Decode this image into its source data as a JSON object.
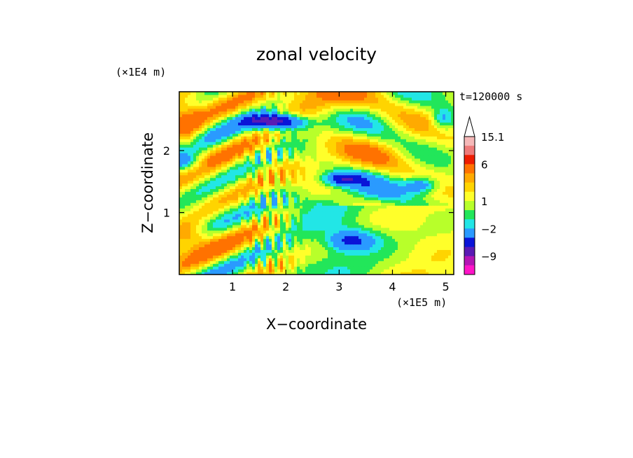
{
  "chart_data": {
    "type": "heatmap",
    "title": "zonal velocity",
    "xlabel": "X−coordinate",
    "ylabel": "Z−coordinate",
    "x_unit": "(×1E5 m)",
    "y_unit": "(×1E4 m)",
    "time_label": "t=120000 s",
    "xlim": [
      0,
      5.15
    ],
    "ylim": [
      0,
      2.95
    ],
    "x_ticks": [
      {
        "value": 1,
        "label": "1"
      },
      {
        "value": 2,
        "label": "2"
      },
      {
        "value": 3,
        "label": "3"
      },
      {
        "value": 4,
        "label": "4"
      },
      {
        "value": 5,
        "label": "5"
      }
    ],
    "y_ticks": [
      {
        "value": 1,
        "label": "1"
      },
      {
        "value": 2,
        "label": "2"
      }
    ],
    "colorbar": {
      "labels": [
        {
          "value": 15.1,
          "label": "15.1"
        },
        {
          "value": 6,
          "label": "6"
        },
        {
          "value": 1,
          "label": "1"
        },
        {
          "value": -2,
          "label": "−2"
        },
        {
          "value": -9,
          "label": "−9"
        }
      ],
      "levels": [
        {
          "min": 12,
          "max": 15.1,
          "color": "#f5b8b8"
        },
        {
          "min": 9,
          "max": 12,
          "color": "#ee7a7a"
        },
        {
          "min": 6,
          "max": 9,
          "color": "#ee1c00"
        },
        {
          "min": 4,
          "max": 6,
          "color": "#ff7200"
        },
        {
          "min": 3,
          "max": 4,
          "color": "#ffaa00"
        },
        {
          "min": 2,
          "max": 3,
          "color": "#ffd400"
        },
        {
          "min": 1,
          "max": 2,
          "color": "#ffff2a"
        },
        {
          "min": 0,
          "max": 1,
          "color": "#b8ff2a"
        },
        {
          "min": -1,
          "max": 0,
          "color": "#22e65a"
        },
        {
          "min": -2,
          "max": -1,
          "color": "#22e6e6"
        },
        {
          "min": -4,
          "max": -2,
          "color": "#2a9aff"
        },
        {
          "min": -6,
          "max": -4,
          "color": "#0a14d8"
        },
        {
          "min": -9,
          "max": -6,
          "color": "#5a1ab4"
        },
        {
          "min": -12,
          "max": -9,
          "color": "#b414b4"
        },
        {
          "min": -15,
          "max": -12,
          "color": "#ff14c8"
        }
      ]
    }
  }
}
